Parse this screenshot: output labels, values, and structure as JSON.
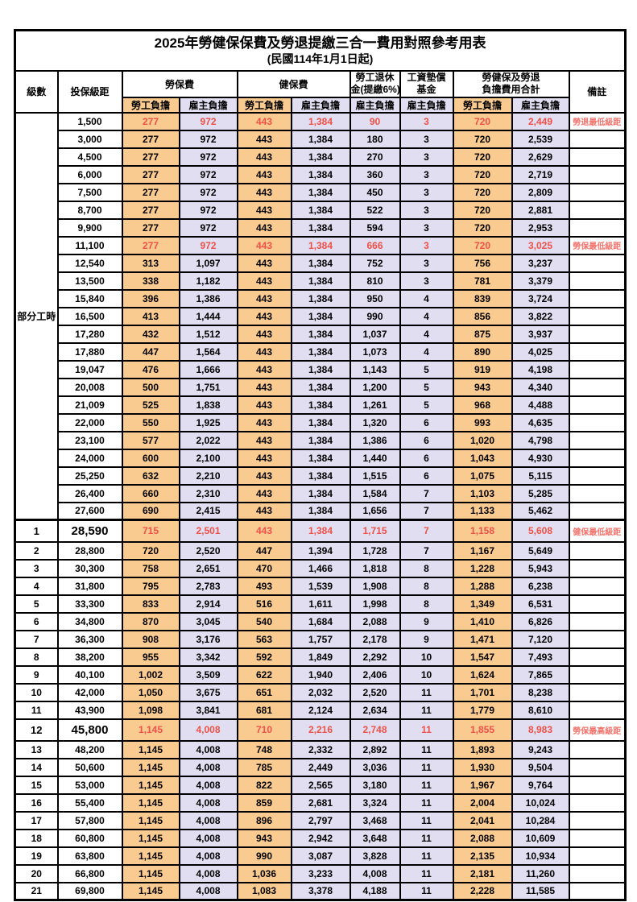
{
  "title": "2025年勞健保保費及勞退提繳三合一費用對照參考用表",
  "subtitle": "(民國114年1月1日起)",
  "colors": {
    "employee_bg": "#FACB90",
    "employer_bg": "#E0DEF0",
    "highlight_red": "#ED5148",
    "remark_red": "#F3736C"
  },
  "header": {
    "level": "級數",
    "bracket": "投保級距",
    "labor_group": "勞保費",
    "health_group": "健保費",
    "pension_line1": "勞工退休",
    "pension_line2": "金(提繳6%)",
    "fund_line1": "工資墊償",
    "fund_line2": "基金",
    "total_line1": "勞健保及勞退",
    "total_line2": "負擔費用合計",
    "remark": "備註",
    "employee": "勞工負擔",
    "employer": "雇主負擔"
  },
  "part_time_label": "部分工時",
  "rows": [
    {
      "level": "",
      "bracket": "1,500",
      "labor_emp": "277",
      "labor_er": "972",
      "health_emp": "443",
      "health_er": "1,384",
      "pension_er": "90",
      "fund_er": "3",
      "total_emp": "720",
      "total_er": "2,449",
      "remark": "勞退最低級距",
      "red": true,
      "big": false
    },
    {
      "level": "",
      "bracket": "3,000",
      "labor_emp": "277",
      "labor_er": "972",
      "health_emp": "443",
      "health_er": "1,384",
      "pension_er": "180",
      "fund_er": "3",
      "total_emp": "720",
      "total_er": "2,539",
      "remark": "",
      "red": false,
      "big": false
    },
    {
      "level": "",
      "bracket": "4,500",
      "labor_emp": "277",
      "labor_er": "972",
      "health_emp": "443",
      "health_er": "1,384",
      "pension_er": "270",
      "fund_er": "3",
      "total_emp": "720",
      "total_er": "2,629",
      "remark": "",
      "red": false,
      "big": false
    },
    {
      "level": "",
      "bracket": "6,000",
      "labor_emp": "277",
      "labor_er": "972",
      "health_emp": "443",
      "health_er": "1,384",
      "pension_er": "360",
      "fund_er": "3",
      "total_emp": "720",
      "total_er": "2,719",
      "remark": "",
      "red": false,
      "big": false
    },
    {
      "level": "",
      "bracket": "7,500",
      "labor_emp": "277",
      "labor_er": "972",
      "health_emp": "443",
      "health_er": "1,384",
      "pension_er": "450",
      "fund_er": "3",
      "total_emp": "720",
      "total_er": "2,809",
      "remark": "",
      "red": false,
      "big": false
    },
    {
      "level": "",
      "bracket": "8,700",
      "labor_emp": "277",
      "labor_er": "972",
      "health_emp": "443",
      "health_er": "1,384",
      "pension_er": "522",
      "fund_er": "3",
      "total_emp": "720",
      "total_er": "2,881",
      "remark": "",
      "red": false,
      "big": false
    },
    {
      "level": "",
      "bracket": "9,900",
      "labor_emp": "277",
      "labor_er": "972",
      "health_emp": "443",
      "health_er": "1,384",
      "pension_er": "594",
      "fund_er": "3",
      "total_emp": "720",
      "total_er": "2,953",
      "remark": "",
      "red": false,
      "big": false
    },
    {
      "level": "",
      "bracket": "11,100",
      "labor_emp": "277",
      "labor_er": "972",
      "health_emp": "443",
      "health_er": "1,384",
      "pension_er": "666",
      "fund_er": "3",
      "total_emp": "720",
      "total_er": "3,025",
      "remark": "勞保最低級距",
      "red": true,
      "big": false
    },
    {
      "level": "",
      "bracket": "12,540",
      "labor_emp": "313",
      "labor_er": "1,097",
      "health_emp": "443",
      "health_er": "1,384",
      "pension_er": "752",
      "fund_er": "3",
      "total_emp": "756",
      "total_er": "3,237",
      "remark": "",
      "red": false,
      "big": false
    },
    {
      "level": "",
      "bracket": "13,500",
      "labor_emp": "338",
      "labor_er": "1,182",
      "health_emp": "443",
      "health_er": "1,384",
      "pension_er": "810",
      "fund_er": "3",
      "total_emp": "781",
      "total_er": "3,379",
      "remark": "",
      "red": false,
      "big": false
    },
    {
      "level": "",
      "bracket": "15,840",
      "labor_emp": "396",
      "labor_er": "1,386",
      "health_emp": "443",
      "health_er": "1,384",
      "pension_er": "950",
      "fund_er": "4",
      "total_emp": "839",
      "total_er": "3,724",
      "remark": "",
      "red": false,
      "big": false
    },
    {
      "level": "",
      "bracket": "16,500",
      "labor_emp": "413",
      "labor_er": "1,444",
      "health_emp": "443",
      "health_er": "1,384",
      "pension_er": "990",
      "fund_er": "4",
      "total_emp": "856",
      "total_er": "3,822",
      "remark": "",
      "red": false,
      "big": false
    },
    {
      "level": "",
      "bracket": "17,280",
      "labor_emp": "432",
      "labor_er": "1,512",
      "health_emp": "443",
      "health_er": "1,384",
      "pension_er": "1,037",
      "fund_er": "4",
      "total_emp": "875",
      "total_er": "3,937",
      "remark": "",
      "red": false,
      "big": false
    },
    {
      "level": "",
      "bracket": "17,880",
      "labor_emp": "447",
      "labor_er": "1,564",
      "health_emp": "443",
      "health_er": "1,384",
      "pension_er": "1,073",
      "fund_er": "4",
      "total_emp": "890",
      "total_er": "4,025",
      "remark": "",
      "red": false,
      "big": false
    },
    {
      "level": "",
      "bracket": "19,047",
      "labor_emp": "476",
      "labor_er": "1,666",
      "health_emp": "443",
      "health_er": "1,384",
      "pension_er": "1,143",
      "fund_er": "5",
      "total_emp": "919",
      "total_er": "4,198",
      "remark": "",
      "red": false,
      "big": false
    },
    {
      "level": "",
      "bracket": "20,008",
      "labor_emp": "500",
      "labor_er": "1,751",
      "health_emp": "443",
      "health_er": "1,384",
      "pension_er": "1,200",
      "fund_er": "5",
      "total_emp": "943",
      "total_er": "4,340",
      "remark": "",
      "red": false,
      "big": false
    },
    {
      "level": "",
      "bracket": "21,009",
      "labor_emp": "525",
      "labor_er": "1,838",
      "health_emp": "443",
      "health_er": "1,384",
      "pension_er": "1,261",
      "fund_er": "5",
      "total_emp": "968",
      "total_er": "4,488",
      "remark": "",
      "red": false,
      "big": false
    },
    {
      "level": "",
      "bracket": "22,000",
      "labor_emp": "550",
      "labor_er": "1,925",
      "health_emp": "443",
      "health_er": "1,384",
      "pension_er": "1,320",
      "fund_er": "6",
      "total_emp": "993",
      "total_er": "4,635",
      "remark": "",
      "red": false,
      "big": false
    },
    {
      "level": "",
      "bracket": "23,100",
      "labor_emp": "577",
      "labor_er": "2,022",
      "health_emp": "443",
      "health_er": "1,384",
      "pension_er": "1,386",
      "fund_er": "6",
      "total_emp": "1,020",
      "total_er": "4,798",
      "remark": "",
      "red": false,
      "big": false
    },
    {
      "level": "",
      "bracket": "24,000",
      "labor_emp": "600",
      "labor_er": "2,100",
      "health_emp": "443",
      "health_er": "1,384",
      "pension_er": "1,440",
      "fund_er": "6",
      "total_emp": "1,043",
      "total_er": "4,930",
      "remark": "",
      "red": false,
      "big": false
    },
    {
      "level": "",
      "bracket": "25,250",
      "labor_emp": "632",
      "labor_er": "2,210",
      "health_emp": "443",
      "health_er": "1,384",
      "pension_er": "1,515",
      "fund_er": "6",
      "total_emp": "1,075",
      "total_er": "5,115",
      "remark": "",
      "red": false,
      "big": false
    },
    {
      "level": "",
      "bracket": "26,400",
      "labor_emp": "660",
      "labor_er": "2,310",
      "health_emp": "443",
      "health_er": "1,384",
      "pension_er": "1,584",
      "fund_er": "7",
      "total_emp": "1,103",
      "total_er": "5,285",
      "remark": "",
      "red": false,
      "big": false
    },
    {
      "level": "",
      "bracket": "27,600",
      "labor_emp": "690",
      "labor_er": "2,415",
      "health_emp": "443",
      "health_er": "1,384",
      "pension_er": "1,656",
      "fund_er": "7",
      "total_emp": "1,133",
      "total_er": "5,462",
      "remark": "",
      "red": false,
      "big": false
    },
    {
      "level": "1",
      "bracket": "28,590",
      "labor_emp": "715",
      "labor_er": "2,501",
      "health_emp": "443",
      "health_er": "1,384",
      "pension_er": "1,715",
      "fund_er": "7",
      "total_emp": "1,158",
      "total_er": "5,608",
      "remark": "健保最低級距",
      "red": true,
      "big": true
    },
    {
      "level": "2",
      "bracket": "28,800",
      "labor_emp": "720",
      "labor_er": "2,520",
      "health_emp": "447",
      "health_er": "1,394",
      "pension_er": "1,728",
      "fund_er": "7",
      "total_emp": "1,167",
      "total_er": "5,649",
      "remark": "",
      "red": false,
      "big": false
    },
    {
      "level": "3",
      "bracket": "30,300",
      "labor_emp": "758",
      "labor_er": "2,651",
      "health_emp": "470",
      "health_er": "1,466",
      "pension_er": "1,818",
      "fund_er": "8",
      "total_emp": "1,228",
      "total_er": "5,943",
      "remark": "",
      "red": false,
      "big": false
    },
    {
      "level": "4",
      "bracket": "31,800",
      "labor_emp": "795",
      "labor_er": "2,783",
      "health_emp": "493",
      "health_er": "1,539",
      "pension_er": "1,908",
      "fund_er": "8",
      "total_emp": "1,288",
      "total_er": "6,238",
      "remark": "",
      "red": false,
      "big": false
    },
    {
      "level": "5",
      "bracket": "33,300",
      "labor_emp": "833",
      "labor_er": "2,914",
      "health_emp": "516",
      "health_er": "1,611",
      "pension_er": "1,998",
      "fund_er": "8",
      "total_emp": "1,349",
      "total_er": "6,531",
      "remark": "",
      "red": false,
      "big": false
    },
    {
      "level": "6",
      "bracket": "34,800",
      "labor_emp": "870",
      "labor_er": "3,045",
      "health_emp": "540",
      "health_er": "1,684",
      "pension_er": "2,088",
      "fund_er": "9",
      "total_emp": "1,410",
      "total_er": "6,826",
      "remark": "",
      "red": false,
      "big": false
    },
    {
      "level": "7",
      "bracket": "36,300",
      "labor_emp": "908",
      "labor_er": "3,176",
      "health_emp": "563",
      "health_er": "1,757",
      "pension_er": "2,178",
      "fund_er": "9",
      "total_emp": "1,471",
      "total_er": "7,120",
      "remark": "",
      "red": false,
      "big": false
    },
    {
      "level": "8",
      "bracket": "38,200",
      "labor_emp": "955",
      "labor_er": "3,342",
      "health_emp": "592",
      "health_er": "1,849",
      "pension_er": "2,292",
      "fund_er": "10",
      "total_emp": "1,547",
      "total_er": "7,493",
      "remark": "",
      "red": false,
      "big": false
    },
    {
      "level": "9",
      "bracket": "40,100",
      "labor_emp": "1,002",
      "labor_er": "3,509",
      "health_emp": "622",
      "health_er": "1,940",
      "pension_er": "2,406",
      "fund_er": "10",
      "total_emp": "1,624",
      "total_er": "7,865",
      "remark": "",
      "red": false,
      "big": false
    },
    {
      "level": "10",
      "bracket": "42,000",
      "labor_emp": "1,050",
      "labor_er": "3,675",
      "health_emp": "651",
      "health_er": "2,032",
      "pension_er": "2,520",
      "fund_er": "11",
      "total_emp": "1,701",
      "total_er": "8,238",
      "remark": "",
      "red": false,
      "big": false
    },
    {
      "level": "11",
      "bracket": "43,900",
      "labor_emp": "1,098",
      "labor_er": "3,841",
      "health_emp": "681",
      "health_er": "2,124",
      "pension_er": "2,634",
      "fund_er": "11",
      "total_emp": "1,779",
      "total_er": "8,610",
      "remark": "",
      "red": false,
      "big": false
    },
    {
      "level": "12",
      "bracket": "45,800",
      "labor_emp": "1,145",
      "labor_er": "4,008",
      "health_emp": "710",
      "health_er": "2,216",
      "pension_er": "2,748",
      "fund_er": "11",
      "total_emp": "1,855",
      "total_er": "8,983",
      "remark": "勞保最高級距",
      "red": true,
      "big": true
    },
    {
      "level": "13",
      "bracket": "48,200",
      "labor_emp": "1,145",
      "labor_er": "4,008",
      "health_emp": "748",
      "health_er": "2,332",
      "pension_er": "2,892",
      "fund_er": "11",
      "total_emp": "1,893",
      "total_er": "9,243",
      "remark": "",
      "red": false,
      "big": false
    },
    {
      "level": "14",
      "bracket": "50,600",
      "labor_emp": "1,145",
      "labor_er": "4,008",
      "health_emp": "785",
      "health_er": "2,449",
      "pension_er": "3,036",
      "fund_er": "11",
      "total_emp": "1,930",
      "total_er": "9,504",
      "remark": "",
      "red": false,
      "big": false
    },
    {
      "level": "15",
      "bracket": "53,000",
      "labor_emp": "1,145",
      "labor_er": "4,008",
      "health_emp": "822",
      "health_er": "2,565",
      "pension_er": "3,180",
      "fund_er": "11",
      "total_emp": "1,967",
      "total_er": "9,764",
      "remark": "",
      "red": false,
      "big": false
    },
    {
      "level": "16",
      "bracket": "55,400",
      "labor_emp": "1,145",
      "labor_er": "4,008",
      "health_emp": "859",
      "health_er": "2,681",
      "pension_er": "3,324",
      "fund_er": "11",
      "total_emp": "2,004",
      "total_er": "10,024",
      "remark": "",
      "red": false,
      "big": false
    },
    {
      "level": "17",
      "bracket": "57,800",
      "labor_emp": "1,145",
      "labor_er": "4,008",
      "health_emp": "896",
      "health_er": "2,797",
      "pension_er": "3,468",
      "fund_er": "11",
      "total_emp": "2,041",
      "total_er": "10,284",
      "remark": "",
      "red": false,
      "big": false
    },
    {
      "level": "18",
      "bracket": "60,800",
      "labor_emp": "1,145",
      "labor_er": "4,008",
      "health_emp": "943",
      "health_er": "2,942",
      "pension_er": "3,648",
      "fund_er": "11",
      "total_emp": "2,088",
      "total_er": "10,609",
      "remark": "",
      "red": false,
      "big": false
    },
    {
      "level": "19",
      "bracket": "63,800",
      "labor_emp": "1,145",
      "labor_er": "4,008",
      "health_emp": "990",
      "health_er": "3,087",
      "pension_er": "3,828",
      "fund_er": "11",
      "total_emp": "2,135",
      "total_er": "10,934",
      "remark": "",
      "red": false,
      "big": false
    },
    {
      "level": "20",
      "bracket": "66,800",
      "labor_emp": "1,145",
      "labor_er": "4,008",
      "health_emp": "1,036",
      "health_er": "3,233",
      "pension_er": "4,008",
      "fund_er": "11",
      "total_emp": "2,181",
      "total_er": "11,260",
      "remark": "",
      "red": false,
      "big": false
    },
    {
      "level": "21",
      "bracket": "69,800",
      "labor_emp": "1,145",
      "labor_er": "4,008",
      "health_emp": "1,083",
      "health_er": "3,378",
      "pension_er": "4,188",
      "fund_er": "11",
      "total_emp": "2,228",
      "total_er": "11,585",
      "remark": "",
      "red": false,
      "big": false
    }
  ]
}
